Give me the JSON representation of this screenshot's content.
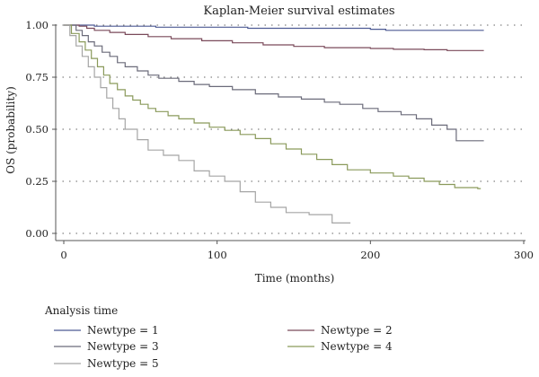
{
  "chart_data": {
    "type": "line",
    "title": "Kaplan-Meier survival estimates",
    "xlabel": "Time (months)",
    "ylabel": "OS (probability)",
    "xlim": [
      0,
      300
    ],
    "ylim": [
      0,
      1
    ],
    "x_ticks": [
      0,
      100,
      200,
      300
    ],
    "x_tick_labels": [
      "0",
      "100",
      "200",
      "300"
    ],
    "y_ticks": [
      0,
      0.25,
      0.5,
      0.75,
      1
    ],
    "y_tick_labels": [
      "0.00",
      "0.25",
      "0.50",
      "0.75",
      "1.00"
    ],
    "grid": "horizontal dotted",
    "legend_title": "Analysis time",
    "legend_position": "bottom",
    "step": true,
    "series": [
      {
        "name": "Newtype = 1",
        "color": "#4d5a93",
        "points": [
          [
            0,
            1.0
          ],
          [
            20,
            0.995
          ],
          [
            60,
            0.99
          ],
          [
            120,
            0.985
          ],
          [
            200,
            0.98
          ],
          [
            210,
            0.975
          ],
          [
            274,
            0.975
          ]
        ]
      },
      {
        "name": "Newtype = 2",
        "color": "#7a4a5a",
        "points": [
          [
            0,
            1.0
          ],
          [
            10,
            0.995
          ],
          [
            15,
            0.985
          ],
          [
            20,
            0.975
          ],
          [
            30,
            0.965
          ],
          [
            40,
            0.955
          ],
          [
            55,
            0.945
          ],
          [
            70,
            0.935
          ],
          [
            90,
            0.925
          ],
          [
            110,
            0.915
          ],
          [
            130,
            0.905
          ],
          [
            150,
            0.898
          ],
          [
            170,
            0.892
          ],
          [
            200,
            0.888
          ],
          [
            215,
            0.884
          ],
          [
            235,
            0.882
          ],
          [
            250,
            0.878
          ],
          [
            274,
            0.878
          ]
        ]
      },
      {
        "name": "Newtype = 3",
        "color": "#6b6b7a",
        "points": [
          [
            0,
            1.0
          ],
          [
            8,
            0.975
          ],
          [
            12,
            0.95
          ],
          [
            16,
            0.92
          ],
          [
            20,
            0.9
          ],
          [
            25,
            0.87
          ],
          [
            30,
            0.85
          ],
          [
            35,
            0.82
          ],
          [
            40,
            0.8
          ],
          [
            48,
            0.78
          ],
          [
            55,
            0.76
          ],
          [
            62,
            0.745
          ],
          [
            75,
            0.73
          ],
          [
            85,
            0.715
          ],
          [
            95,
            0.705
          ],
          [
            110,
            0.69
          ],
          [
            125,
            0.67
          ],
          [
            140,
            0.655
          ],
          [
            155,
            0.645
          ],
          [
            170,
            0.63
          ],
          [
            180,
            0.62
          ],
          [
            195,
            0.6
          ],
          [
            205,
            0.585
          ],
          [
            220,
            0.57
          ],
          [
            230,
            0.55
          ],
          [
            240,
            0.52
          ],
          [
            250,
            0.5
          ],
          [
            256,
            0.445
          ],
          [
            274,
            0.445
          ]
        ]
      },
      {
        "name": "Newtype = 4",
        "color": "#8a9a5b",
        "points": [
          [
            0,
            1.0
          ],
          [
            5,
            0.96
          ],
          [
            10,
            0.92
          ],
          [
            14,
            0.88
          ],
          [
            18,
            0.84
          ],
          [
            22,
            0.8
          ],
          [
            26,
            0.76
          ],
          [
            30,
            0.72
          ],
          [
            35,
            0.69
          ],
          [
            40,
            0.66
          ],
          [
            45,
            0.64
          ],
          [
            50,
            0.62
          ],
          [
            55,
            0.6
          ],
          [
            60,
            0.585
          ],
          [
            68,
            0.565
          ],
          [
            75,
            0.55
          ],
          [
            85,
            0.53
          ],
          [
            95,
            0.51
          ],
          [
            105,
            0.495
          ],
          [
            115,
            0.475
          ],
          [
            125,
            0.455
          ],
          [
            135,
            0.43
          ],
          [
            145,
            0.405
          ],
          [
            155,
            0.38
          ],
          [
            165,
            0.355
          ],
          [
            175,
            0.33
          ],
          [
            185,
            0.305
          ],
          [
            200,
            0.29
          ],
          [
            215,
            0.275
          ],
          [
            225,
            0.265
          ],
          [
            235,
            0.25
          ],
          [
            245,
            0.235
          ],
          [
            255,
            0.22
          ],
          [
            270,
            0.215
          ],
          [
            272,
            0.215
          ]
        ]
      },
      {
        "name": "Newtype = 5",
        "color": "#a5a5a5",
        "points": [
          [
            0,
            1.0
          ],
          [
            4,
            0.95
          ],
          [
            8,
            0.9
          ],
          [
            12,
            0.85
          ],
          [
            16,
            0.8
          ],
          [
            20,
            0.75
          ],
          [
            24,
            0.7
          ],
          [
            28,
            0.65
          ],
          [
            32,
            0.6
          ],
          [
            36,
            0.55
          ],
          [
            40,
            0.5
          ],
          [
            48,
            0.45
          ],
          [
            55,
            0.4
          ],
          [
            65,
            0.375
          ],
          [
            75,
            0.35
          ],
          [
            85,
            0.3
          ],
          [
            95,
            0.275
          ],
          [
            105,
            0.25
          ],
          [
            115,
            0.2
          ],
          [
            125,
            0.15
          ],
          [
            135,
            0.125
          ],
          [
            145,
            0.1
          ],
          [
            160,
            0.09
          ],
          [
            175,
            0.05
          ],
          [
            187,
            0.05
          ]
        ]
      }
    ]
  }
}
